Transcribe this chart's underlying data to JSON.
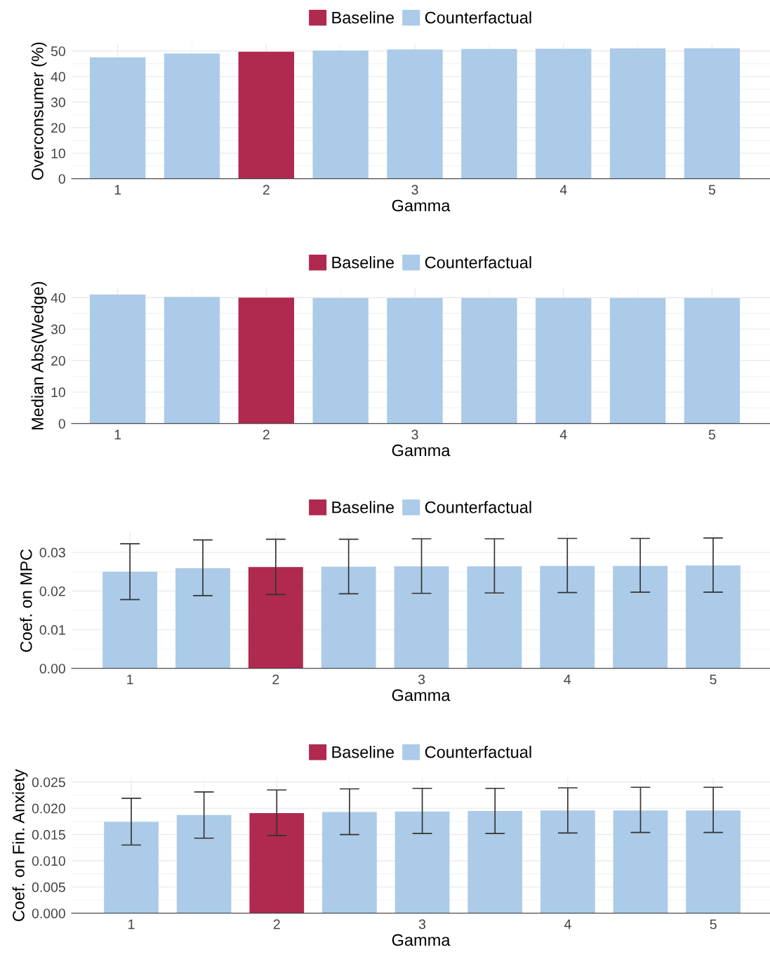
{
  "chart_data": [
    {
      "type": "bar",
      "xlabel": "Gamma",
      "ylabel": "Overconsumer (%)",
      "xlim": [
        0.69,
        5.39
      ],
      "xticks": [
        1,
        2,
        3,
        4,
        5
      ],
      "ylim": [
        0,
        53
      ],
      "yticks": [
        0,
        10,
        20,
        30,
        40,
        50
      ],
      "grid": true,
      "legend": "top",
      "series": [
        {
          "name": "Baseline",
          "color": "#b0294f",
          "x": [
            2
          ],
          "values": [
            49.7
          ]
        },
        {
          "name": "Counterfactual",
          "color": "#abcbe8",
          "x": [
            1,
            1.5,
            2.5,
            3,
            3.5,
            4,
            4.5,
            5
          ],
          "values": [
            47.5,
            49,
            50.2,
            50.6,
            50.8,
            50.9,
            51,
            51.1
          ]
        }
      ]
    },
    {
      "type": "bar",
      "xlabel": "Gamma",
      "ylabel": "Median Abs(Wedge)",
      "xlim": [
        0.69,
        5.39
      ],
      "xticks": [
        1,
        2,
        3,
        4,
        5
      ],
      "ylim": [
        0,
        43
      ],
      "yticks": [
        0,
        10,
        20,
        30,
        40
      ],
      "grid": true,
      "legend": "top",
      "series": [
        {
          "name": "Baseline",
          "color": "#b0294f",
          "x": [
            2
          ],
          "values": [
            40
          ]
        },
        {
          "name": "Counterfactual",
          "color": "#abcbe8",
          "x": [
            1,
            1.5,
            2.5,
            3,
            3.5,
            4,
            4.5,
            5
          ],
          "values": [
            41,
            40.2,
            39.9,
            39.9,
            39.9,
            39.9,
            39.9,
            39.9
          ]
        }
      ]
    },
    {
      "type": "bar",
      "xlabel": "Gamma",
      "ylabel": "Coef. on MPC",
      "xlim": [
        0.6,
        5.39
      ],
      "xticks": [
        1,
        2,
        3,
        4,
        5
      ],
      "ylim": [
        0,
        0.035
      ],
      "yticks": [
        {
          "value": 0,
          "label": "0.00"
        },
        0.01,
        0.02,
        0.03
      ],
      "grid": true,
      "legend": "top",
      "series": [
        {
          "name": "Baseline",
          "color": "#b0294f",
          "x": [
            2
          ],
          "values": [
            0.0262
          ],
          "errors": [
            [
              0.0191,
              0.0334
            ]
          ]
        },
        {
          "name": "Counterfactual",
          "color": "#abcbe8",
          "x": [
            1,
            1.5,
            2.5,
            3,
            3.5,
            4,
            4.5,
            5
          ],
          "values": [
            0.025,
            0.0259,
            0.0263,
            0.0264,
            0.0264,
            0.0265,
            0.0265,
            0.0266
          ],
          "errors": [
            [
              0.0178,
              0.0322
            ],
            [
              0.0188,
              0.0332
            ],
            [
              0.0193,
              0.0334
            ],
            [
              0.0194,
              0.0335
            ],
            [
              0.0195,
              0.0335
            ],
            [
              0.0196,
              0.0336
            ],
            [
              0.0197,
              0.0336
            ],
            [
              0.0197,
              0.0337
            ]
          ]
        }
      ]
    },
    {
      "type": "bar",
      "xlabel": "Gamma",
      "ylabel": "Coef. on Fin. Anxiety",
      "xlim": [
        0.59,
        5.39
      ],
      "xticks": [
        1,
        2,
        3,
        4,
        5
      ],
      "ylim": [
        0,
        0.0258
      ],
      "yticks": [
        {
          "value": 0,
          "label": "0.000"
        },
        {
          "value": 0.005,
          "label": "0.005"
        },
        {
          "value": 0.01,
          "label": "0.010"
        },
        {
          "value": 0.015,
          "label": "0.015"
        },
        {
          "value": 0.02,
          "label": "0.020"
        },
        {
          "value": 0.025,
          "label": "0.025"
        }
      ],
      "grid": true,
      "legend": "top",
      "series": [
        {
          "name": "Baseline",
          "color": "#b0294f",
          "x": [
            2
          ],
          "values": [
            0.0191
          ],
          "errors": [
            [
              0.0148,
              0.0235
            ]
          ]
        },
        {
          "name": "Counterfactual",
          "color": "#abcbe8",
          "x": [
            1,
            1.5,
            2.5,
            3,
            3.5,
            4,
            4.5,
            5
          ],
          "values": [
            0.0174,
            0.0187,
            0.0193,
            0.0194,
            0.0195,
            0.0196,
            0.0196,
            0.0196
          ],
          "errors": [
            [
              0.013,
              0.0219
            ],
            [
              0.0143,
              0.0231
            ],
            [
              0.015,
              0.0237
            ],
            [
              0.0152,
              0.0238
            ],
            [
              0.0152,
              0.0238
            ],
            [
              0.0153,
              0.0239
            ],
            [
              0.0154,
              0.024
            ],
            [
              0.0154,
              0.024
            ]
          ]
        }
      ]
    }
  ]
}
